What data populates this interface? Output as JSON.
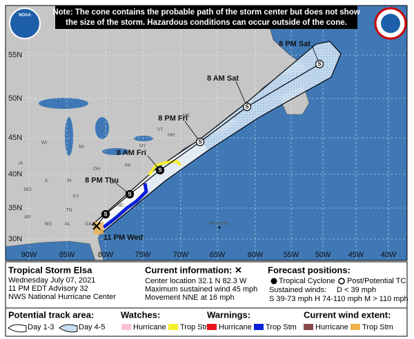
{
  "note": [
    "Note: The cone contains the probable path of the storm center but does not show",
    "the size of the storm. Hazardous conditions can occur outside of the cone."
  ],
  "logo": "NOAA",
  "map": {
    "lat_labels": [
      "55N",
      "50N",
      "45N",
      "40N",
      "35N",
      "30N"
    ],
    "lon_labels": [
      "90W",
      "85W",
      "80W",
      "75W",
      "70W",
      "65W",
      "60W",
      "55W",
      "50W",
      "45W",
      "40W"
    ],
    "forecast_labels": [
      "11 PM Wed",
      "8 PM Thu",
      "8 AM Fri",
      "8 PM Fri",
      "8 AM Sat",
      "8 PM Sat"
    ],
    "markers": [
      "S",
      "S",
      "S",
      "S",
      "S",
      "S"
    ],
    "place_labels": [
      "WI",
      "MI",
      "IA",
      "IL",
      "IN",
      "OH",
      "PA",
      "NY",
      "VT",
      "NH",
      "ME",
      "MO",
      "KY",
      "WV",
      "VA",
      "TN",
      "NC",
      "AR",
      "MS",
      "AL",
      "GA",
      "SC"
    ],
    "bermuda": "Bermuda"
  },
  "info": {
    "title": "Tropical Storm Elsa",
    "lines": [
      "Wednesday July 07, 2021",
      "11 PM EDT Advisory 32",
      "NWS National Hurricane Center"
    ],
    "current_title": "Current information: ✕",
    "current_lines": [
      "Center location 32.1 N 82.3 W",
      "Maximum sustained wind 45 mph",
      "Movement NNE at 16 mph"
    ],
    "forecast_title": "Forecast positions:",
    "tc": "Tropical Cyclone",
    "post": "Post/Potential TC",
    "winds_title": "Sustained winds:",
    "d": "D < 39 mph",
    "shm": "S 39-73 mph H 74-110 mph M > 110 mph"
  },
  "legend": {
    "track_title": "Potential track area:",
    "day13": "Day 1-3",
    "day45": "Day 4-5",
    "watches_title": "Watches:",
    "watch_hurricane": "Hurricane",
    "watch_trop": "Trop Stm",
    "warnings_title": "Warnings:",
    "warn_hurricane": "Hurricane",
    "warn_trop": "Trop Stm",
    "wind_title": "Current wind extent:",
    "wind_hurricane": "Hurricane",
    "wind_trop": "Trop Stm"
  }
}
